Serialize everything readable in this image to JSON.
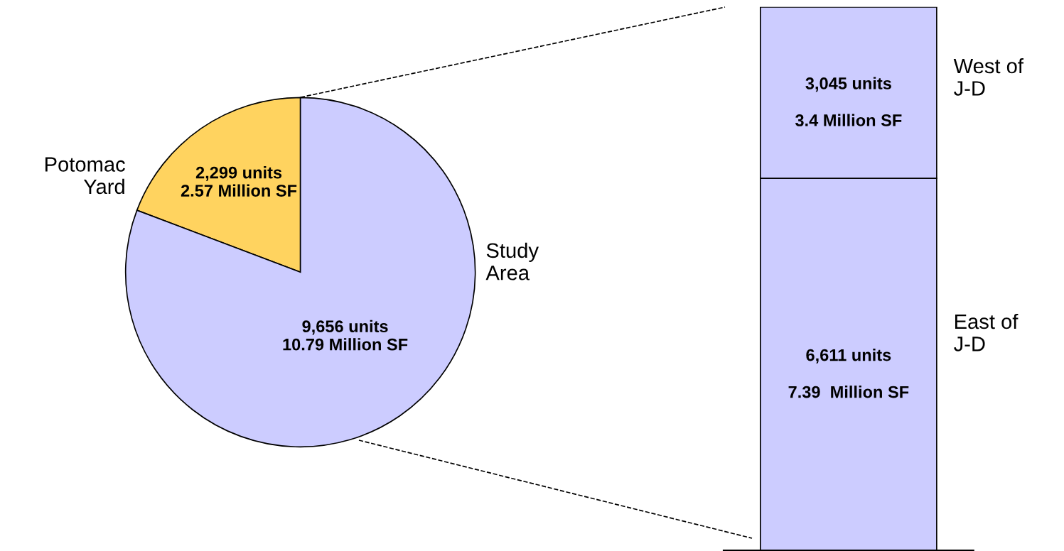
{
  "chart_data": [
    {
      "type": "pie",
      "categories": [
        "Potomac\nYard",
        "Study\nArea"
      ],
      "values": [
        2299,
        9656
      ],
      "colors": [
        "#ffd35f",
        "#ccccff"
      ],
      "value_labels": [
        "2,299 units\n2.57 Million SF",
        "9,656 units\n10.79 Million SF"
      ]
    },
    {
      "type": "bar",
      "stacked": true,
      "categories": [
        null
      ],
      "series": [
        {
          "name": "East of\nJ-D",
          "color": "#ccccff",
          "values": [
            6611
          ],
          "value_labels": [
            "6,611 units"
          ]
        },
        {
          "name": "West of\nJ-D",
          "color": "#ccccff",
          "values": [
            3045
          ],
          "value_labels": [
            "3,045 units"
          ]
        }
      ],
      "annotations": [
        "7.39  Million SF",
        "3.4 Million SF"
      ]
    }
  ]
}
